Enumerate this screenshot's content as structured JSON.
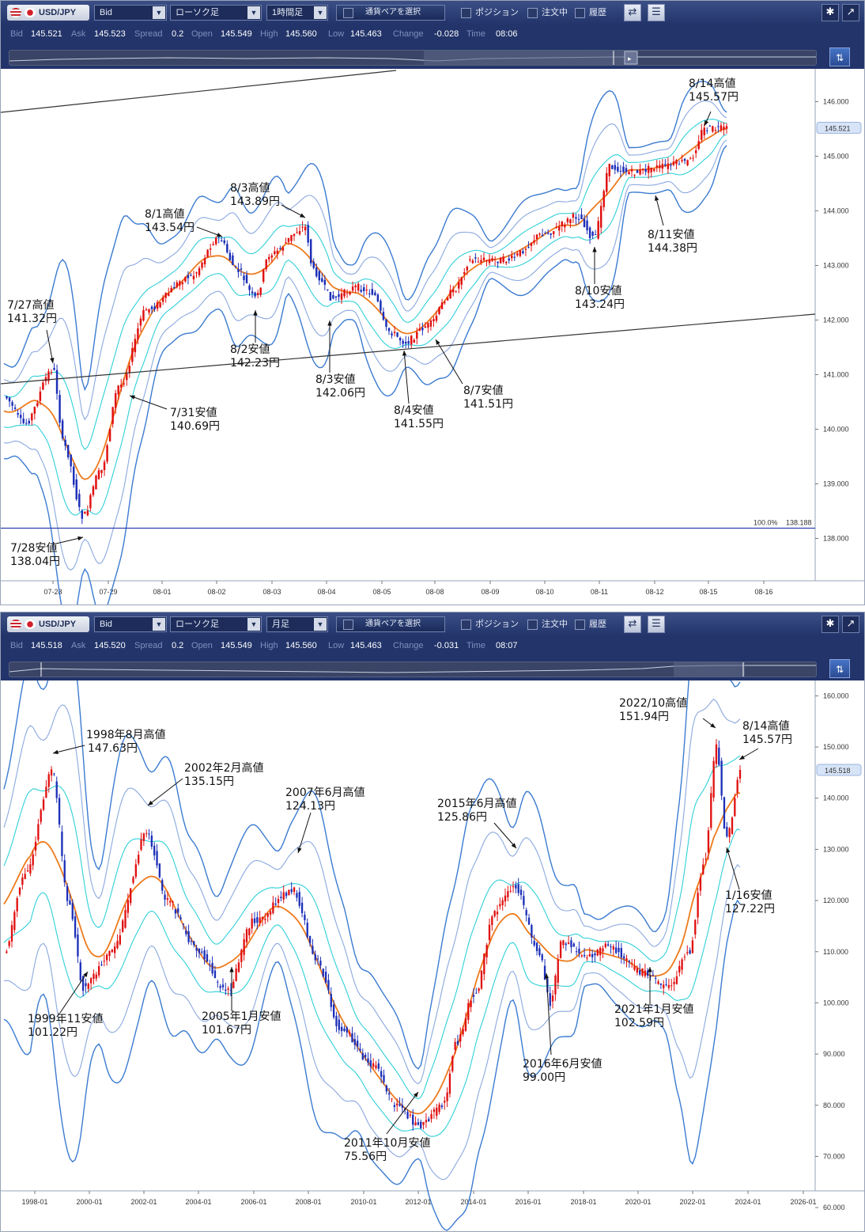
{
  "panels": [
    {
      "symbol": "USD/JPY",
      "price_type": "Bid",
      "chart_type": "ローソク足",
      "timeframe": "1時間足",
      "pair_select": "通貨ペアを選択",
      "checks": [
        "ポジション",
        "注文中",
        "履歴"
      ],
      "quote": {
        "bid_label": "Bid",
        "bid": "145.521",
        "ask_label": "Ask",
        "ask": "145.523",
        "spread_label": "Spread",
        "spread": "0.2",
        "open_label": "Open",
        "open": "145.549",
        "high_label": "High",
        "high": "145.560",
        "low_label": "Low",
        "low": "145.463",
        "change_label": "Change",
        "change": "-0.028",
        "time_label": "Time",
        "time": "08:06"
      },
      "current_price": "145.521",
      "fib_label": "100.0%",
      "fib_value": "138.188",
      "chart_data": {
        "type": "candlestick",
        "indicators": [
          "bollinger bands",
          "moving average"
        ],
        "y_ticks": [
          "146.000",
          "145.000",
          "144.000",
          "143.000",
          "142.000",
          "141.000",
          "140.000",
          "139.000",
          "138.000"
        ],
        "x_ticks": [
          "07-28",
          "07-29",
          "08-01",
          "08-02",
          "08-03",
          "08-04",
          "08-05",
          "08-08",
          "08-09",
          "08-10",
          "08-11",
          "08-12",
          "08-15",
          "08-16"
        ],
        "ylim": [
          137.5,
          146.6
        ],
        "horizontal_line": 138.188,
        "key_levels": [
          {
            "label": "7/27高値",
            "value": "141.32円"
          },
          {
            "label": "7/28安値",
            "value": "138.04円"
          },
          {
            "label": "7/31安値",
            "value": "140.69円"
          },
          {
            "label": "8/1高値",
            "value": "143.54円"
          },
          {
            "label": "8/2安値",
            "value": "142.23円"
          },
          {
            "label": "8/3高値",
            "value": "143.89円"
          },
          {
            "label": "8/3安値",
            "value": "142.06円"
          },
          {
            "label": "8/4安値",
            "value": "141.55円"
          },
          {
            "label": "8/7安値",
            "value": "141.51円"
          },
          {
            "label": "8/10安値",
            "value": "143.24円"
          },
          {
            "label": "8/11安値",
            "value": "144.38円"
          },
          {
            "label": "8/14高値",
            "value": "145.57円"
          }
        ]
      }
    },
    {
      "symbol": "USD/JPY",
      "price_type": "Bid",
      "chart_type": "ローソク足",
      "timeframe": "月足",
      "pair_select": "通貨ペアを選択",
      "checks": [
        "ポジション",
        "注文中",
        "履歴"
      ],
      "quote": {
        "bid_label": "Bid",
        "bid": "145.518",
        "ask_label": "Ask",
        "ask": "145.520",
        "spread_label": "Spread",
        "spread": "0.2",
        "open_label": "Open",
        "open": "145.549",
        "high_label": "High",
        "high": "145.560",
        "low_label": "Low",
        "low": "145.463",
        "change_label": "Change",
        "change": "-0.031",
        "time_label": "Time",
        "time": "08:07"
      },
      "current_price": "145.518",
      "chart_data": {
        "type": "candlestick",
        "indicators": [
          "bollinger bands",
          "moving average"
        ],
        "y_ticks": [
          "160.000",
          "150.000",
          "140.000",
          "130.000",
          "120.000",
          "110.000",
          "100.000",
          "90.000",
          "80.000",
          "70.000",
          "60.000"
        ],
        "x_ticks": [
          "1998-01",
          "2000-01",
          "2002-01",
          "2004-01",
          "2006-01",
          "2008-01",
          "2010-01",
          "2012-01",
          "2014-01",
          "2016-01",
          "2018-01",
          "2020-01",
          "2022-01",
          "2024-01",
          "2026-01"
        ],
        "ylim": [
          56,
          163
        ],
        "key_levels": [
          {
            "label": "1998年8月高値",
            "value": "147.63円"
          },
          {
            "label": "1999年11安値",
            "value": "101.22円"
          },
          {
            "label": "2002年2月高値",
            "value": "135.15円"
          },
          {
            "label": "2005年1月安値",
            "value": "101.67円"
          },
          {
            "label": "2007年6月高値",
            "value": "124.13円"
          },
          {
            "label": "2011年10月安値",
            "value": "75.56円"
          },
          {
            "label": "2015年6月高値",
            "value": "125.86円"
          },
          {
            "label": "2016年6月安値",
            "value": "99.00円"
          },
          {
            "label": "2021年1月安値",
            "value": "102.59円"
          },
          {
            "label": "2022/10高値",
            "value": "151.94円"
          },
          {
            "label": "8/14高値",
            "value": "145.57円"
          },
          {
            "label": "1/16安値",
            "value": "127.22円"
          }
        ]
      }
    }
  ],
  "colors": {
    "toolbar": "#22346a",
    "band_outer": "#3b7bd0",
    "band_mid": "#8aa8df",
    "band_inner": "#30d0d8",
    "ma": "#ee7a1c",
    "up": "#e01010",
    "down": "#1c2fb8"
  },
  "icons": [
    "settings-icon",
    "popout-icon",
    "chart-icon",
    "list-icon",
    "navigator-toggle-icon"
  ]
}
